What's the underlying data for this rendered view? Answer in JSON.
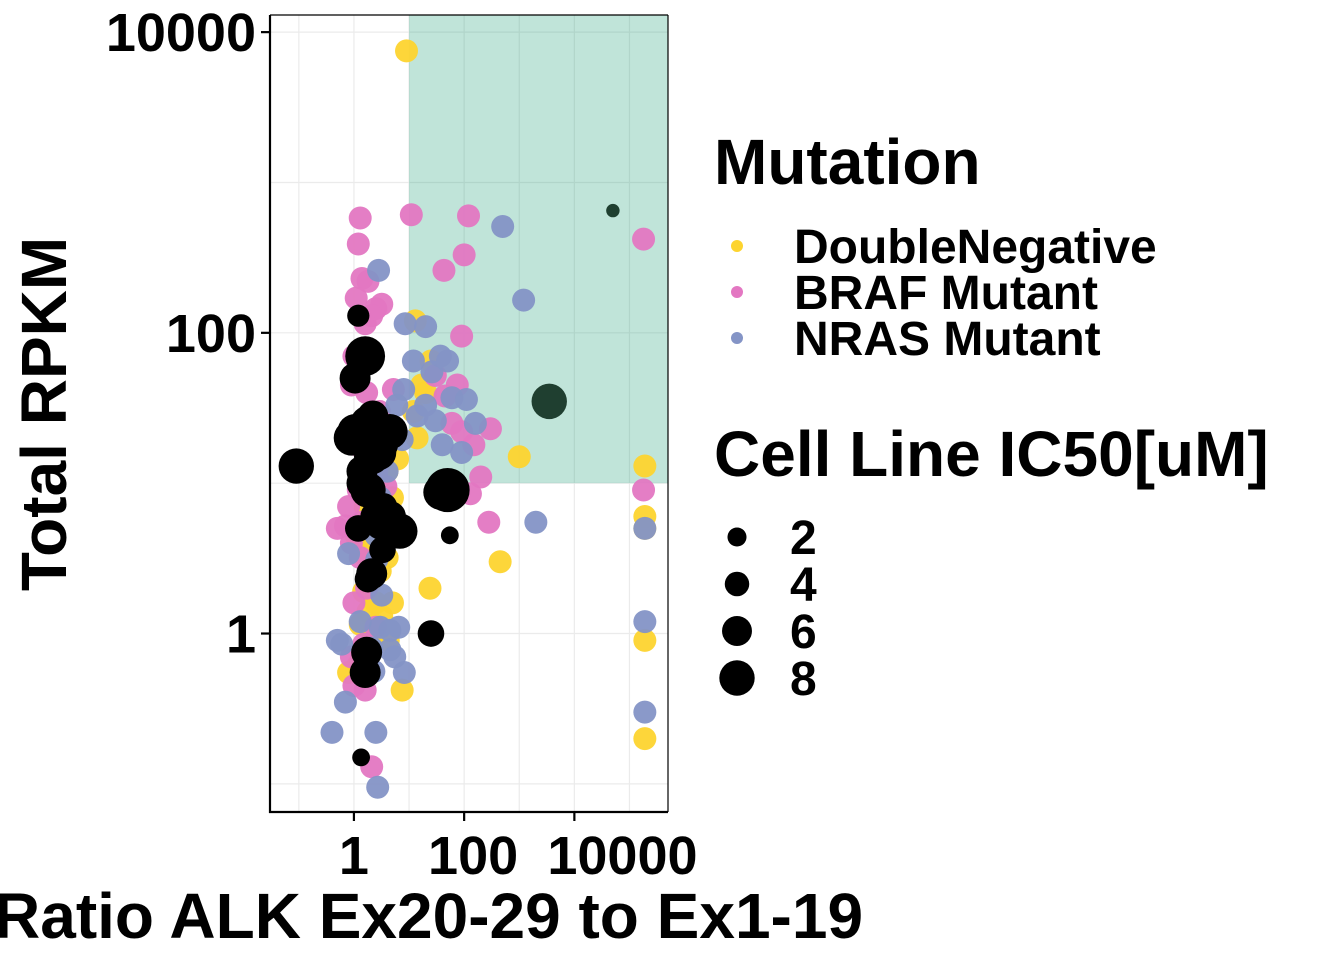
{
  "colors": {
    "DoubleNegative": "#fdd42f",
    "BRAF Mutant": "#e377c2",
    "NRAS Mutant": "#8494c6",
    "highlight_black": "#000000",
    "region_fill": "#1b9e77",
    "grid": "#ebebeb",
    "background": "#ffffff"
  },
  "chart_data": {
    "type": "scatter",
    "xlabel": "Ratio ALK Ex20-29 to Ex1-19",
    "ylabel": "Total RPKM",
    "x_scale": "log10",
    "y_scale": "log10",
    "xlim": [
      0.03,
      500000
    ],
    "ylim": [
      0.065,
      13000
    ],
    "x_ticks": [
      {
        "value": 1,
        "label": "1"
      },
      {
        "value": 100,
        "label": "100"
      },
      {
        "value": 10000,
        "label": "10000"
      }
    ],
    "y_ticks": [
      {
        "value": 1,
        "label": "1"
      },
      {
        "value": 100,
        "label": "100"
      },
      {
        "value": 10000,
        "label": "10000"
      }
    ],
    "highlight_region": {
      "x_min": 10,
      "x_max": 500000,
      "y_min": 10,
      "y_max": 13000
    },
    "legend_mutation": {
      "title": "Mutation",
      "entries": [
        "DoubleNegative",
        "BRAF Mutant",
        "NRAS Mutant"
      ]
    },
    "legend_size": {
      "title": "Cell Line IC50[uM]",
      "entries": [
        {
          "label": "2",
          "value": 2
        },
        {
          "label": "4",
          "value": 4
        },
        {
          "label": "6",
          "value": 6
        },
        {
          "label": "8",
          "value": 8
        }
      ]
    },
    "series": [
      {
        "name": "DoubleNegative",
        "points": [
          [
            9,
            7500
          ],
          [
            1.4,
            22
          ],
          [
            2.5,
            15
          ],
          [
            4,
            12
          ],
          [
            3,
            11
          ],
          [
            2,
            9
          ],
          [
            5,
            8
          ],
          [
            6,
            5
          ],
          [
            4,
            3.2
          ],
          [
            3,
            2.6
          ],
          [
            2,
            2.2
          ],
          [
            1.5,
            1.9
          ],
          [
            2.5,
            1.6
          ],
          [
            1.8,
            1.4
          ],
          [
            3.2,
            1.3
          ],
          [
            1.3,
            1.15
          ],
          [
            2.2,
            1.0
          ],
          [
            3.5,
            0.95
          ],
          [
            5,
            1.6
          ],
          [
            0.8,
            0.55
          ],
          [
            1.2,
            0.62
          ],
          [
            7.5,
            0.42
          ],
          [
            4.2,
            0.9
          ],
          [
            1.1,
            4.5
          ],
          [
            2.1,
            4.0
          ],
          [
            3.3,
            5.5
          ],
          [
            1.6,
            7.0
          ],
          [
            6.2,
            14.5
          ],
          [
            14,
            20
          ],
          [
            12,
            30
          ],
          [
            17,
            45
          ],
          [
            13,
            120
          ],
          [
            25,
            65
          ],
          [
            20,
            40
          ],
          [
            24,
            2
          ],
          [
            1000,
            15
          ],
          [
            450,
            3
          ],
          [
            190000,
            13
          ],
          [
            190000,
            6
          ],
          [
            190000,
            5
          ],
          [
            190000,
            0.9
          ],
          [
            190000,
            0.2
          ],
          [
            1.9,
            9.5
          ],
          [
            2.6,
            6.0
          ],
          [
            1.4,
            3.4
          ]
        ]
      },
      {
        "name": "BRAF Mutant",
        "points": [
          [
            1.3,
            580
          ],
          [
            1.2,
            390
          ],
          [
            1.4,
            230
          ],
          [
            1.8,
            220
          ],
          [
            2.5,
            145
          ],
          [
            1.1,
            170
          ],
          [
            3.2,
            155
          ],
          [
            2.1,
            130
          ],
          [
            1.6,
            115
          ],
          [
            1.0,
            70
          ],
          [
            0.9,
            45
          ],
          [
            1.7,
            40
          ],
          [
            2.9,
            30
          ],
          [
            1.5,
            25
          ],
          [
            3.8,
            22
          ],
          [
            1.1,
            18
          ],
          [
            1.9,
            14
          ],
          [
            2.6,
            12
          ],
          [
            1.2,
            9
          ],
          [
            0.8,
            7
          ],
          [
            1.4,
            5.5
          ],
          [
            0.7,
            5.2
          ],
          [
            0.5,
            5.0
          ],
          [
            0.9,
            4.0
          ],
          [
            1.3,
            3.2
          ],
          [
            2.2,
            2.5
          ],
          [
            1.7,
            2.0
          ],
          [
            1.0,
            1.6
          ],
          [
            2.5,
            1.1
          ],
          [
            1.5,
            0.85
          ],
          [
            0.9,
            0.7
          ],
          [
            1.0,
            0.45
          ],
          [
            1.6,
            0.42
          ],
          [
            2.1,
            0.13
          ],
          [
            11,
            610
          ],
          [
            43,
            260
          ],
          [
            120,
            600
          ],
          [
            100,
            330
          ],
          [
            90,
            95
          ],
          [
            30,
            52
          ],
          [
            75,
            45
          ],
          [
            45,
            38
          ],
          [
            60,
            25
          ],
          [
            90,
            22
          ],
          [
            150,
            18
          ],
          [
            300,
            23
          ],
          [
            200,
            11
          ],
          [
            280,
            5.5
          ],
          [
            130,
            8.5
          ],
          [
            58,
            9.0
          ],
          [
            180000,
            420
          ],
          [
            180000,
            9
          ],
          [
            5.2,
            42
          ],
          [
            3.8,
            9.5
          ]
        ]
      },
      {
        "name": "NRAS Mutant",
        "points": [
          [
            2.8,
            260
          ],
          [
            8.5,
            115
          ],
          [
            12,
            65
          ],
          [
            20,
            110
          ],
          [
            37,
            70
          ],
          [
            26,
            55
          ],
          [
            50,
            65
          ],
          [
            20,
            33
          ],
          [
            14,
            28
          ],
          [
            30,
            26
          ],
          [
            40,
            18
          ],
          [
            60,
            37
          ],
          [
            110,
            36
          ],
          [
            160,
            25
          ],
          [
            90,
            16
          ],
          [
            1200,
            165
          ],
          [
            500,
            510
          ],
          [
            8,
            42
          ],
          [
            6,
            33
          ],
          [
            5,
            20
          ],
          [
            4,
            12
          ],
          [
            3,
            8
          ],
          [
            5,
            5.0
          ],
          [
            2.5,
            4.5
          ],
          [
            3.5,
            3.7
          ],
          [
            0.8,
            3.4
          ],
          [
            0.6,
            0.85
          ],
          [
            0.5,
            0.9
          ],
          [
            0.7,
            0.35
          ],
          [
            0.4,
            0.22
          ],
          [
            2.5,
            0.22
          ],
          [
            3.0,
            1.1
          ],
          [
            4.5,
            1.05
          ],
          [
            6.5,
            1.1
          ],
          [
            4.5,
            0.78
          ],
          [
            5.5,
            0.7
          ],
          [
            2.1,
            0.8
          ],
          [
            1.3,
            1.2
          ],
          [
            2.6,
            3.1
          ],
          [
            3.2,
            1.8
          ],
          [
            2.3,
            0.56
          ],
          [
            8.2,
            0.55
          ],
          [
            2000,
            5.5
          ],
          [
            190000,
            1.2
          ],
          [
            190000,
            0.3
          ],
          [
            190000,
            5
          ],
          [
            2.7,
            0.095
          ],
          [
            7.5,
            19.5
          ],
          [
            1.7,
            9.3
          ]
        ]
      },
      {
        "name": "IC50",
        "color": "black",
        "points": [
          [
            1.2,
            130,
            3
          ],
          [
            1.6,
            70,
            7
          ],
          [
            1.05,
            50,
            5
          ],
          [
            1.05,
            22,
            6
          ],
          [
            0.9,
            20,
            6
          ],
          [
            0.09,
            13,
            6
          ],
          [
            1.4,
            12,
            5
          ],
          [
            1.8,
            25,
            6
          ],
          [
            2.2,
            28,
            5
          ],
          [
            2.4,
            19,
            6
          ],
          [
            3.3,
            18,
            5
          ],
          [
            4.5,
            22,
            6
          ],
          [
            2.1,
            15,
            6
          ],
          [
            2.8,
            16,
            6
          ],
          [
            1.4,
            10,
            5
          ],
          [
            1.8,
            9,
            6
          ],
          [
            2.5,
            6,
            5
          ],
          [
            3.5,
            7,
            4
          ],
          [
            3.2,
            5.5,
            6
          ],
          [
            4.6,
            6.0,
            5
          ],
          [
            1.2,
            5.0,
            4
          ],
          [
            6.8,
            4.8,
            6
          ],
          [
            3.3,
            3.6,
            4
          ],
          [
            1.8,
            2.3,
            4
          ],
          [
            2.1,
            2.5,
            5
          ],
          [
            1.7,
            0.75,
            5
          ],
          [
            1.6,
            0.55,
            5
          ],
          [
            1.35,
            0.15,
            2
          ],
          [
            38,
            8.7,
            6
          ],
          [
            50,
            9.0,
            8
          ],
          [
            3500,
            35,
            6
          ],
          [
            50000,
            650,
            1
          ],
          [
            25,
            1.0,
            4
          ],
          [
            55,
            4.5,
            2
          ]
        ]
      }
    ]
  }
}
